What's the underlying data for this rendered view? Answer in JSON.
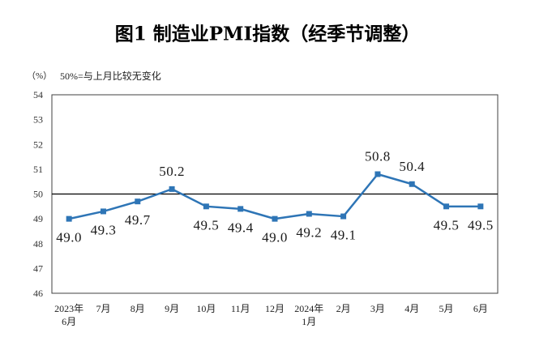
{
  "chart_data": {
    "type": "line",
    "title": "图1 制造业PMI指数（经季节调整）",
    "unit": "（%）",
    "note": "50%=与上月比较无变化",
    "categories": [
      [
        "2023年",
        "6月"
      ],
      [
        "7月"
      ],
      [
        "8月"
      ],
      [
        "9月"
      ],
      [
        "10月"
      ],
      [
        "11月"
      ],
      [
        "12月"
      ],
      [
        "2024年",
        "1月"
      ],
      [
        "2月"
      ],
      [
        "3月"
      ],
      [
        "4月"
      ],
      [
        "5月"
      ],
      [
        "6月"
      ]
    ],
    "values": [
      49.0,
      49.3,
      49.7,
      50.2,
      49.5,
      49.4,
      49.0,
      49.2,
      49.1,
      50.8,
      50.4,
      49.5,
      49.5
    ],
    "data_labels": [
      "49.0",
      "49.3",
      "49.7",
      "50.2",
      "49.5",
      "49.4",
      "49.0",
      "49.2",
      "49.1",
      "50.8",
      "50.4",
      "49.5",
      "49.5"
    ],
    "ylim": [
      46,
      54
    ],
    "yticks": [
      46,
      47,
      48,
      49,
      50,
      51,
      52,
      53,
      54
    ],
    "reference_line": 50,
    "grid": false,
    "colors": {
      "line": "#2e75b6",
      "reference_line": "#000000",
      "frame": "#404040"
    }
  }
}
